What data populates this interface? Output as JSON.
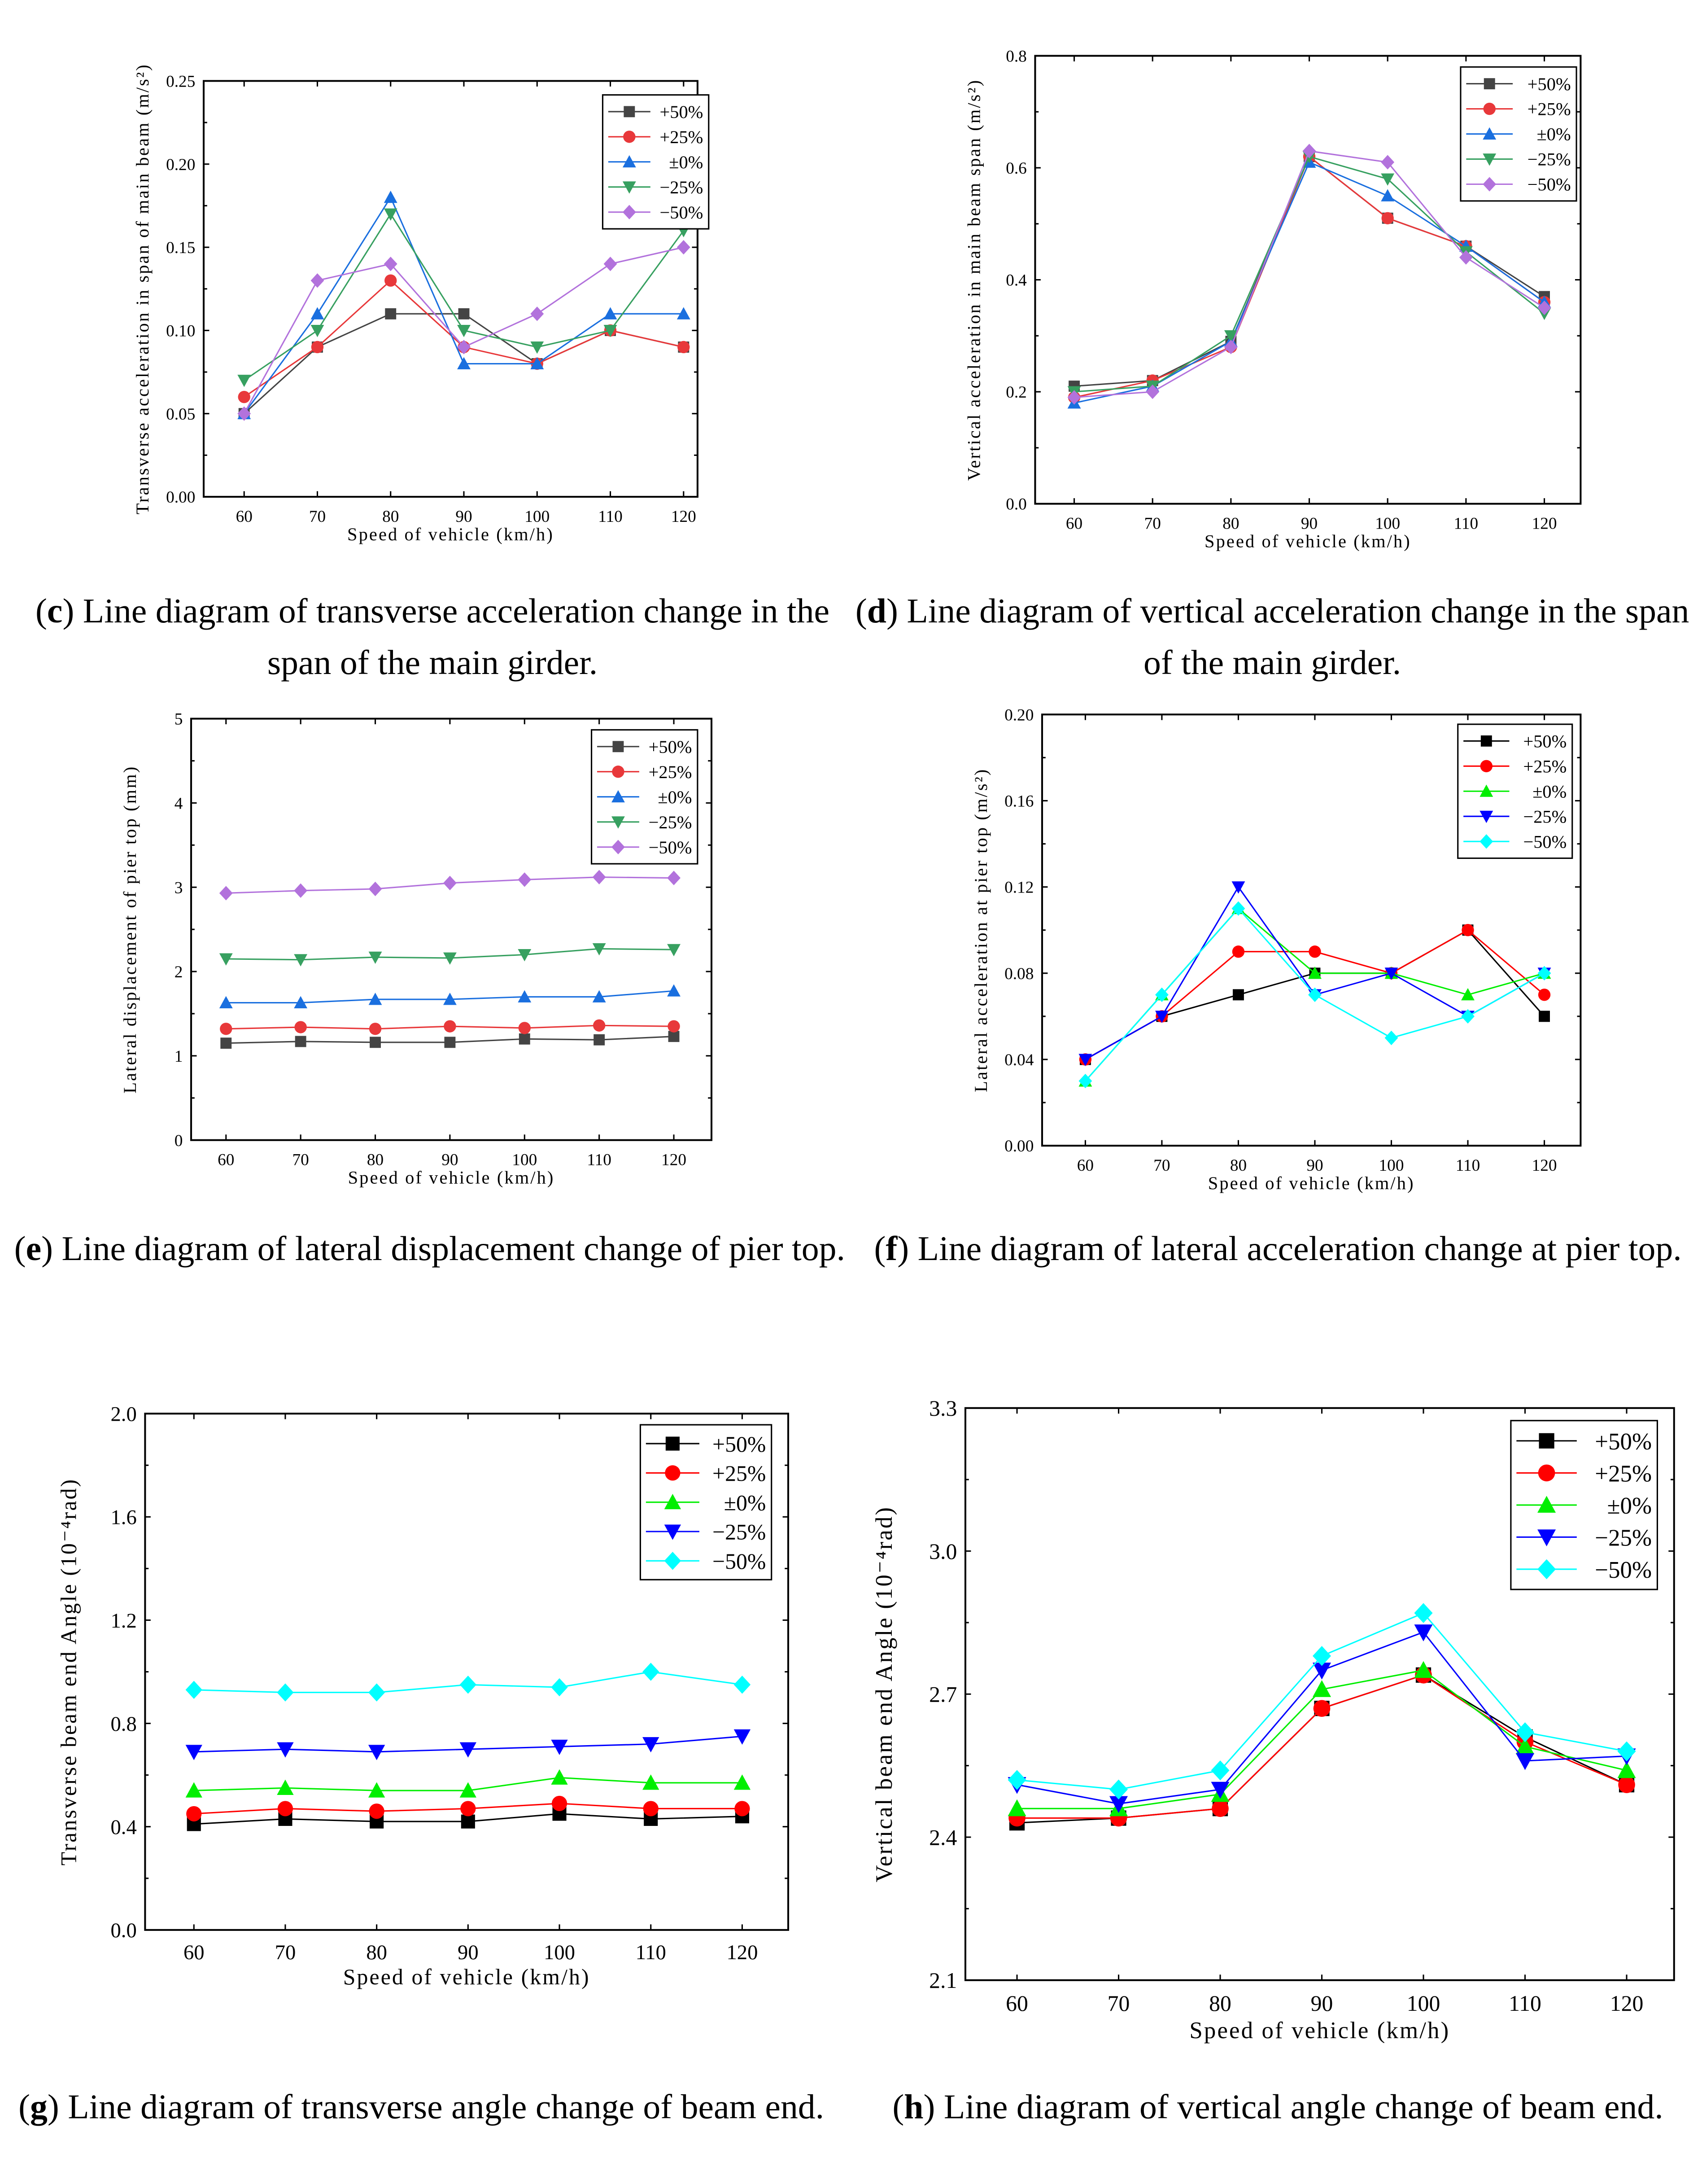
{
  "chart_data": [
    {
      "id": "c",
      "type": "line",
      "caption_letter": "c",
      "caption": "Line diagram of transverse acceleration change in the span of the main girder.",
      "xlabel": "Speed of vehicle (km/h)",
      "ylabel": "Transverse acceleration in span of main beam (m/s²)",
      "x": [
        60,
        70,
        80,
        90,
        100,
        110,
        120
      ],
      "ylim": [
        0,
        0.25
      ],
      "yticks": [
        "0.00",
        "0.05",
        "0.10",
        "0.15",
        "0.20",
        "0.25"
      ],
      "legend": "top-right",
      "series": [
        {
          "name": "+50%",
          "color": "#444444",
          "marker": "square",
          "values": [
            0.05,
            0.09,
            0.11,
            0.11,
            0.08,
            0.1,
            0.09
          ]
        },
        {
          "name": "+25%",
          "color": "#e8383a",
          "marker": "circle",
          "values": [
            0.06,
            0.09,
            0.13,
            0.09,
            0.08,
            0.1,
            0.09
          ]
        },
        {
          "name": "±0%",
          "color": "#1a6fdf",
          "marker": "triangle-up",
          "values": [
            0.05,
            0.11,
            0.18,
            0.08,
            0.08,
            0.11,
            0.11
          ]
        },
        {
          "name": "−25%",
          "color": "#37a060",
          "marker": "triangle-down",
          "values": [
            0.07,
            0.1,
            0.17,
            0.1,
            0.09,
            0.1,
            0.16
          ]
        },
        {
          "name": "−50%",
          "color": "#b272dc",
          "marker": "diamond",
          "values": [
            0.05,
            0.13,
            0.14,
            0.09,
            0.11,
            0.14,
            0.15
          ]
        }
      ]
    },
    {
      "id": "d",
      "type": "line",
      "caption_letter": "d",
      "caption": "Line diagram of vertical acceleration change in the span of the main girder.",
      "xlabel": "Speed of vehicle (km/h)",
      "ylabel": "Vertical acceleration in main beam span (m/s²)",
      "x": [
        60,
        70,
        80,
        90,
        100,
        110,
        120
      ],
      "ylim": [
        0,
        0.8
      ],
      "yticks": [
        "0.0",
        "0.2",
        "0.4",
        "0.6",
        "0.8"
      ],
      "legend": "top-right",
      "series": [
        {
          "name": "+50%",
          "color": "#444444",
          "marker": "square",
          "values": [
            0.21,
            0.22,
            0.29,
            0.62,
            0.51,
            0.46,
            0.37
          ]
        },
        {
          "name": "+25%",
          "color": "#e8383a",
          "marker": "circle",
          "values": [
            0.19,
            0.22,
            0.28,
            0.62,
            0.51,
            0.46,
            0.36
          ]
        },
        {
          "name": "±0%",
          "color": "#1a6fdf",
          "marker": "triangle-up",
          "values": [
            0.18,
            0.21,
            0.29,
            0.61,
            0.55,
            0.46,
            0.36
          ]
        },
        {
          "name": "−25%",
          "color": "#37a060",
          "marker": "triangle-down",
          "values": [
            0.2,
            0.21,
            0.3,
            0.62,
            0.58,
            0.45,
            0.34
          ]
        },
        {
          "name": "−50%",
          "color": "#b272dc",
          "marker": "diamond",
          "values": [
            0.19,
            0.2,
            0.28,
            0.63,
            0.61,
            0.44,
            0.35
          ]
        }
      ]
    },
    {
      "id": "e",
      "type": "line",
      "caption_letter": "e",
      "caption": "Line diagram of lateral displacement change of pier top.",
      "xlabel": "Speed of vehicle (km/h)",
      "ylabel": "Lateral displacement of pier top (mm)",
      "x": [
        60,
        70,
        80,
        90,
        100,
        110,
        120
      ],
      "ylim": [
        0,
        5
      ],
      "yticks": [
        "0",
        "1",
        "2",
        "3",
        "4",
        "5"
      ],
      "legend": "top-right",
      "series": [
        {
          "name": "+50%",
          "color": "#444444",
          "marker": "square",
          "values": [
            1.15,
            1.17,
            1.16,
            1.16,
            1.2,
            1.19,
            1.23
          ]
        },
        {
          "name": "+25%",
          "color": "#e8383a",
          "marker": "circle",
          "values": [
            1.32,
            1.34,
            1.32,
            1.35,
            1.33,
            1.36,
            1.35
          ]
        },
        {
          "name": "±0%",
          "color": "#1a6fdf",
          "marker": "triangle-up",
          "values": [
            1.63,
            1.63,
            1.67,
            1.67,
            1.7,
            1.7,
            1.77
          ]
        },
        {
          "name": "−25%",
          "color": "#37a060",
          "marker": "triangle-down",
          "values": [
            2.15,
            2.14,
            2.17,
            2.16,
            2.2,
            2.27,
            2.26
          ]
        },
        {
          "name": "−50%",
          "color": "#b272dc",
          "marker": "diamond",
          "values": [
            2.93,
            2.96,
            2.98,
            3.05,
            3.09,
            3.12,
            3.11
          ]
        }
      ]
    },
    {
      "id": "f",
      "type": "line",
      "caption_letter": "f",
      "caption": "Line diagram of lateral acceleration change at pier top.",
      "xlabel": "Speed of vehicle (km/h)",
      "ylabel": "Lateral acceleration at pier top (m/s²)",
      "x": [
        60,
        70,
        80,
        90,
        100,
        110,
        120
      ],
      "ylim": [
        0,
        0.2
      ],
      "yticks": [
        "0.00",
        "0.04",
        "0.08",
        "0.12",
        "0.16",
        "0.20"
      ],
      "legend": "top-right",
      "series": [
        {
          "name": "+50%",
          "color": "#000000",
          "marker": "square",
          "values": [
            0.04,
            0.06,
            0.07,
            0.08,
            0.08,
            0.1,
            0.06
          ]
        },
        {
          "name": "+25%",
          "color": "#ff0000",
          "marker": "circle",
          "values": [
            0.04,
            0.06,
            0.09,
            0.09,
            0.08,
            0.1,
            0.07
          ]
        },
        {
          "name": "±0%",
          "color": "#00ee00",
          "marker": "triangle-up",
          "values": [
            0.03,
            0.07,
            0.11,
            0.08,
            0.08,
            0.07,
            0.08
          ]
        },
        {
          "name": "−25%",
          "color": "#0000ff",
          "marker": "triangle-down",
          "values": [
            0.04,
            0.06,
            0.12,
            0.07,
            0.08,
            0.06,
            0.08
          ]
        },
        {
          "name": "−50%",
          "color": "#00ffff",
          "marker": "diamond",
          "values": [
            0.03,
            0.07,
            0.11,
            0.07,
            0.05,
            0.06,
            0.08
          ]
        }
      ]
    },
    {
      "id": "g",
      "type": "line",
      "caption_letter": "g",
      "caption": "Line diagram of transverse angle change of beam end.",
      "xlabel": "Speed of vehicle (km/h)",
      "ylabel": "Transverse beam end Angle (10⁻⁴rad)",
      "x": [
        60,
        70,
        80,
        90,
        100,
        110,
        120
      ],
      "ylim": [
        0,
        2
      ],
      "yticks": [
        "0.0",
        "0.4",
        "0.8",
        "1.2",
        "1.6",
        "2.0"
      ],
      "legend": "top-right",
      "series": [
        {
          "name": "+50%",
          "color": "#000000",
          "marker": "square",
          "values": [
            0.41,
            0.43,
            0.42,
            0.42,
            0.45,
            0.43,
            0.44
          ]
        },
        {
          "name": "+25%",
          "color": "#ff0000",
          "marker": "circle",
          "values": [
            0.45,
            0.47,
            0.46,
            0.47,
            0.49,
            0.47,
            0.47
          ]
        },
        {
          "name": "±0%",
          "color": "#00ee00",
          "marker": "triangle-up",
          "values": [
            0.54,
            0.55,
            0.54,
            0.54,
            0.59,
            0.57,
            0.57
          ]
        },
        {
          "name": "−25%",
          "color": "#0000ff",
          "marker": "triangle-down",
          "values": [
            0.69,
            0.7,
            0.69,
            0.7,
            0.71,
            0.72,
            0.75
          ]
        },
        {
          "name": "−50%",
          "color": "#00ffff",
          "marker": "diamond",
          "values": [
            0.93,
            0.92,
            0.92,
            0.95,
            0.94,
            1.0,
            0.95
          ]
        }
      ]
    },
    {
      "id": "h",
      "type": "line",
      "caption_letter": "h",
      "caption": "Line diagram of vertical angle change of beam end.",
      "xlabel": "Speed of vehicle (km/h)",
      "ylabel": "Vertical beam end Angle (10⁻⁴rad)",
      "x": [
        60,
        70,
        80,
        90,
        100,
        110,
        120
      ],
      "ylim": [
        2.1,
        3.3
      ],
      "yticks": [
        "2.1",
        "2.4",
        "2.7",
        "3.0",
        "3.3"
      ],
      "legend": "top-right",
      "series": [
        {
          "name": "+50%",
          "color": "#000000",
          "marker": "square",
          "values": [
            2.43,
            2.44,
            2.46,
            2.67,
            2.74,
            2.61,
            2.51
          ]
        },
        {
          "name": "+25%",
          "color": "#ff0000",
          "marker": "circle",
          "values": [
            2.44,
            2.44,
            2.46,
            2.67,
            2.74,
            2.6,
            2.51
          ]
        },
        {
          "name": "±0%",
          "color": "#00ee00",
          "marker": "triangle-up",
          "values": [
            2.46,
            2.46,
            2.49,
            2.71,
            2.75,
            2.59,
            2.54
          ]
        },
        {
          "name": "−25%",
          "color": "#0000ff",
          "marker": "triangle-down",
          "values": [
            2.51,
            2.47,
            2.5,
            2.75,
            2.83,
            2.56,
            2.57
          ]
        },
        {
          "name": "−50%",
          "color": "#00ffff",
          "marker": "diamond",
          "values": [
            2.52,
            2.5,
            2.54,
            2.78,
            2.87,
            2.62,
            2.58
          ]
        }
      ]
    }
  ]
}
